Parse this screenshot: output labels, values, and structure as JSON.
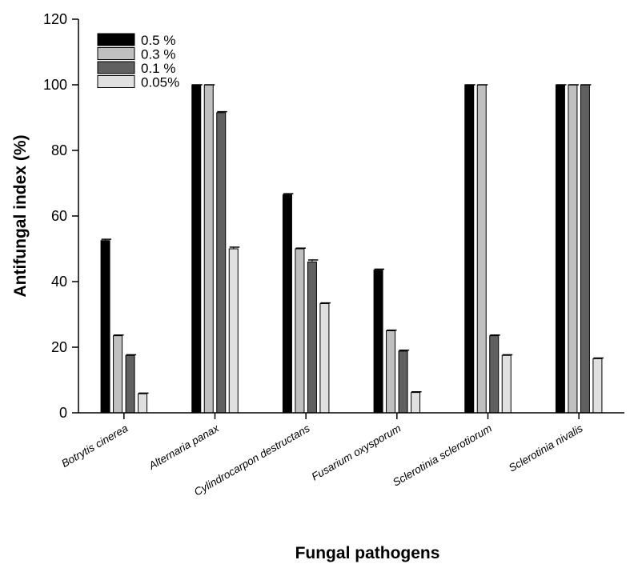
{
  "chart_data": {
    "type": "bar",
    "title": "",
    "xlabel": "Fungal pathogens",
    "ylabel": "Antifungal index (%)",
    "ylim": [
      0,
      120
    ],
    "yticks": [
      "0",
      "20",
      "40",
      "60",
      "80",
      "100",
      "120"
    ],
    "categories": [
      "Botrytis cinerea",
      "Alternaria panax",
      "Cylindrocarpon destructans",
      "Fusarium oxysporum",
      "Sclerotinia sclerotiorum",
      "Sclerotinia nivalis"
    ],
    "series": [
      {
        "name": "0.5 %",
        "color": "#000000",
        "values": [
          52.5,
          100,
          66.5,
          43.5,
          100,
          100
        ],
        "errors": [
          0.4,
          0,
          0.3,
          0.3,
          0,
          0
        ]
      },
      {
        "name": "0.3 %",
        "color": "#c0c0c0",
        "values": [
          23.5,
          100,
          50,
          25,
          100,
          100
        ],
        "errors": [
          0.2,
          0,
          0.2,
          0.2,
          0,
          0
        ]
      },
      {
        "name": "0.1 %",
        "color": "#606060",
        "values": [
          17.5,
          91.5,
          46,
          18.8,
          23.5,
          100
        ],
        "errors": [
          0.2,
          0.3,
          0.6,
          0.3,
          0.2,
          0
        ]
      },
      {
        "name": "0.05%",
        "color": "#e0e0e0",
        "values": [
          5.8,
          50,
          33.3,
          6.2,
          17.5,
          16.5
        ],
        "errors": [
          0.2,
          0.5,
          0.2,
          0.2,
          0.2,
          0.2
        ]
      }
    ],
    "grid": false,
    "legend": "top-left"
  }
}
